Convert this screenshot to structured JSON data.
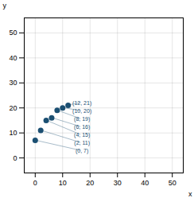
{
  "chart_data": {
    "type": "scatter",
    "x": [
      0,
      2,
      4,
      6,
      8,
      10,
      12
    ],
    "values": [
      7,
      11,
      15,
      16,
      19,
      20,
      21
    ],
    "data_labels": true,
    "value_labels": [
      "(0, 7)",
      "(2, 11)",
      "(4, 15)",
      "(6, 16)",
      "(8, 19)",
      "(10, 20)",
      "(12, 21)"
    ],
    "color": "#1b4f72",
    "xlabel": "x",
    "ylabel": "y",
    "xlim": [
      -4,
      54
    ],
    "ylim": [
      -6,
      56
    ],
    "xticks": [
      0,
      10,
      20,
      30,
      40,
      50
    ],
    "yticks": [
      0,
      10,
      20,
      30,
      40,
      50
    ],
    "grid": true
  }
}
